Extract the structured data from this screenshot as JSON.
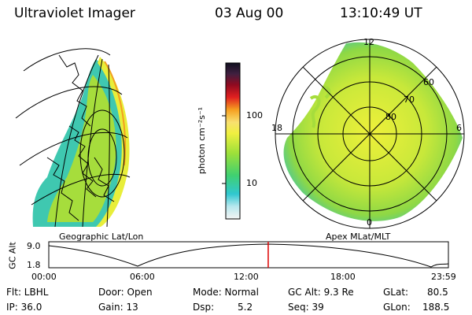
{
  "header": {
    "title": "Ultraviolet Imager",
    "date": "03 Aug 00",
    "time": "13:10:49 UT"
  },
  "left_panel": {
    "label": "Geographic Lat/Lon"
  },
  "colorbar": {
    "unit_label": "photon cm⁻²s⁻¹",
    "ticks": [
      "100",
      "10"
    ]
  },
  "right_panel": {
    "label": "Apex MLat/MLT",
    "mlt_labels": {
      "top": "12",
      "left": "18",
      "right": "6",
      "bottom": "0"
    },
    "lat_labels": [
      "60",
      "70",
      "80"
    ]
  },
  "altitude_plot": {
    "ylabel": "GC Alt",
    "y_ticks": [
      "9.0",
      "1.8"
    ],
    "x_ticks": [
      "00:00",
      "06:00",
      "12:00",
      "18:00",
      "23:59"
    ],
    "current_time_fraction": 0.5491
  },
  "info": {
    "row1": {
      "flt": "Flt: LBHL",
      "door": "Door: Open",
      "mode": "Mode: Normal",
      "gc_alt": "GC Alt: 9.3 Re",
      "glat_label": "GLat:",
      "glat_value": "80.5"
    },
    "row2": {
      "ip": "IP: 36.0",
      "gain": "Gain: 13",
      "dsp_label": "Dsp:",
      "dsp_value": "5.2",
      "seq": "Seq: 39",
      "glon_label": "GLon:",
      "glon_value": "188.5"
    }
  },
  "colors": {
    "altitude_marker": "#dd0000",
    "emission_low": "#2fc7d0",
    "emission_mid": "#aee03a",
    "emission_high": "#e8ee3a"
  }
}
